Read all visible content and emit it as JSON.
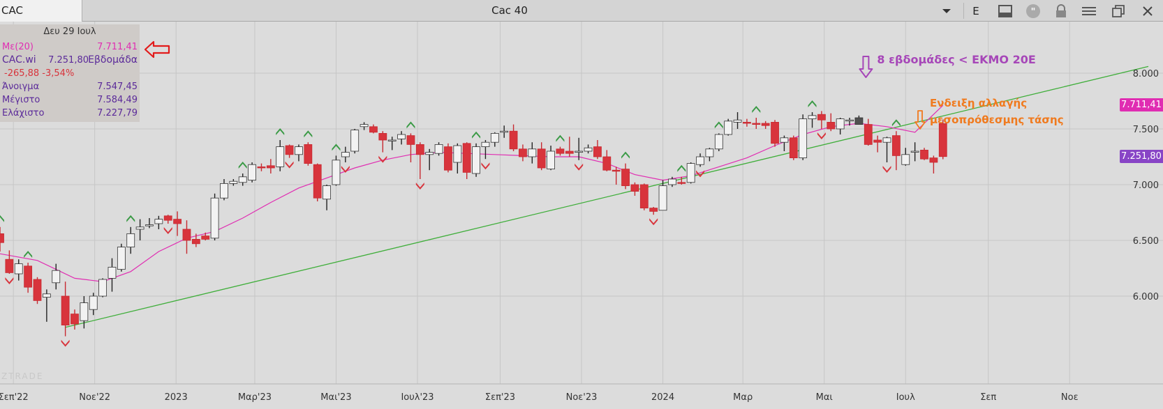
{
  "window": {
    "symbol": "CAC",
    "title": "Cac 40",
    "exchange_label": "E"
  },
  "infobox": {
    "date": "Δευ 29 Ιουλ",
    "ma_label": "Με(20)",
    "ma_value": "7.711,41",
    "series_label": "CAC.wi",
    "series_value": "7.251,80",
    "period": "Εβδομάδα",
    "change": "-265,88 -3,54%",
    "open_label": "Άνοιγμα",
    "open_value": "7.547,45",
    "high_label": "Μέγιστο",
    "high_value": "7.584,49",
    "low_label": "Ελάχιστο",
    "low_value": "7.227,79"
  },
  "watermark": "ZTRADE",
  "colors": {
    "up_fill": "#f2f2f2",
    "down_fill": "#d8343c",
    "ma_line": "#e02db2",
    "trendline": "#3fae3a",
    "arrow_up": "#3a9a45",
    "arrow_down": "#d8343c",
    "ma_badge": "#e02db2",
    "close_badge": "#8845c6",
    "annotation_purple": "#a646b8",
    "annotation_orange": "#f07a1e"
  },
  "chart_data": {
    "type": "candlestick",
    "title": "Cac 40",
    "period": "weekly",
    "ylim": [
      5600,
      8400
    ],
    "y_ticks": [
      "6.000",
      "6.500",
      "7.000",
      "7.500",
      "8.000"
    ],
    "y_tick_values": [
      6000,
      6500,
      7000,
      7500,
      8000
    ],
    "x_ticks": [
      "Σεπ'22",
      "Νοε'22",
      "2023",
      "Μαρ'23",
      "Μαι'23",
      "Ιουλ'23",
      "Σεπ'23",
      "Νοε'23",
      "2024",
      "Μαρ",
      "Μαι",
      "Ιουλ",
      "Σεπ",
      "Νοε"
    ],
    "x_tick_dates": [
      "2022-09-01",
      "2022-11-01",
      "2023-01-01",
      "2023-03-01",
      "2023-05-01",
      "2023-07-01",
      "2023-09-01",
      "2023-11-01",
      "2024-01-01",
      "2024-03-01",
      "2024-05-01",
      "2024-07-01",
      "2024-09-01",
      "2024-11-01"
    ],
    "x_range": [
      "2022-08-22",
      "2024-12-30"
    ],
    "candles": [
      {
        "date": "2022-08-22",
        "o": 6560,
        "h": 6620,
        "l": 6400,
        "c": 6480
      },
      {
        "date": "2022-08-29",
        "o": 6330,
        "h": 6410,
        "l": 6200,
        "c": 6210
      },
      {
        "date": "2022-09-05",
        "o": 6200,
        "h": 6330,
        "l": 6140,
        "c": 6290
      },
      {
        "date": "2022-09-12",
        "o": 6270,
        "h": 6300,
        "l": 6030,
        "c": 6080
      },
      {
        "date": "2022-09-19",
        "o": 6150,
        "h": 6170,
        "l": 5930,
        "c": 5960
      },
      {
        "date": "2022-09-26",
        "o": 5990,
        "h": 6060,
        "l": 5770,
        "c": 6020
      },
      {
        "date": "2022-10-03",
        "o": 6120,
        "h": 6290,
        "l": 6060,
        "c": 6230
      },
      {
        "date": "2022-10-10",
        "o": 6000,
        "h": 6130,
        "l": 5640,
        "c": 5740
      },
      {
        "date": "2022-10-17",
        "o": 5840,
        "h": 5880,
        "l": 5700,
        "c": 5750
      },
      {
        "date": "2022-10-24",
        "o": 5780,
        "h": 6000,
        "l": 5710,
        "c": 5940
      },
      {
        "date": "2022-10-31",
        "o": 5880,
        "h": 6030,
        "l": 5830,
        "c": 6000
      },
      {
        "date": "2022-11-07",
        "o": 6000,
        "h": 6160,
        "l": 5990,
        "c": 6150
      },
      {
        "date": "2022-11-14",
        "o": 6160,
        "h": 6340,
        "l": 6040,
        "c": 6260
      },
      {
        "date": "2022-11-21",
        "o": 6240,
        "h": 6470,
        "l": 6220,
        "c": 6440
      },
      {
        "date": "2022-11-28",
        "o": 6440,
        "h": 6620,
        "l": 6380,
        "c": 6560
      },
      {
        "date": "2022-12-05",
        "o": 6600,
        "h": 6690,
        "l": 6500,
        "c": 6620
      },
      {
        "date": "2022-12-12",
        "o": 6630,
        "h": 6700,
        "l": 6610,
        "c": 6640
      },
      {
        "date": "2022-12-19",
        "o": 6650,
        "h": 6720,
        "l": 6600,
        "c": 6690
      },
      {
        "date": "2022-12-26",
        "o": 6720,
        "h": 6730,
        "l": 6650,
        "c": 6680
      },
      {
        "date": "2023-01-02",
        "o": 6690,
        "h": 6760,
        "l": 6540,
        "c": 6650
      },
      {
        "date": "2023-01-09",
        "o": 6600,
        "h": 6680,
        "l": 6380,
        "c": 6500
      },
      {
        "date": "2023-01-16",
        "o": 6510,
        "h": 6560,
        "l": 6440,
        "c": 6470
      },
      {
        "date": "2023-01-23",
        "o": 6540,
        "h": 6570,
        "l": 6500,
        "c": 6510
      },
      {
        "date": "2023-01-30",
        "o": 6520,
        "h": 6920,
        "l": 6500,
        "c": 6880
      },
      {
        "date": "2023-02-06",
        "o": 6880,
        "h": 7050,
        "l": 6860,
        "c": 7010
      },
      {
        "date": "2023-02-13",
        "o": 7010,
        "h": 7050,
        "l": 6990,
        "c": 7030
      },
      {
        "date": "2023-02-20",
        "o": 7020,
        "h": 7100,
        "l": 6990,
        "c": 7070
      },
      {
        "date": "2023-02-27",
        "o": 7040,
        "h": 7200,
        "l": 7020,
        "c": 7180
      },
      {
        "date": "2023-03-06",
        "o": 7160,
        "h": 7190,
        "l": 7120,
        "c": 7150
      },
      {
        "date": "2023-03-13",
        "o": 7170,
        "h": 7230,
        "l": 7100,
        "c": 7150
      },
      {
        "date": "2023-03-20",
        "o": 7160,
        "h": 7400,
        "l": 7120,
        "c": 7340
      },
      {
        "date": "2023-03-27",
        "o": 7350,
        "h": 7360,
        "l": 7240,
        "c": 7270
      },
      {
        "date": "2023-04-03",
        "o": 7270,
        "h": 7360,
        "l": 7210,
        "c": 7340
      },
      {
        "date": "2023-04-10",
        "o": 7360,
        "h": 7380,
        "l": 7170,
        "c": 7190
      },
      {
        "date": "2023-04-17",
        "o": 7180,
        "h": 7190,
        "l": 6850,
        "c": 6880
      },
      {
        "date": "2023-04-24",
        "o": 6870,
        "h": 7000,
        "l": 6770,
        "c": 6990
      },
      {
        "date": "2023-05-01",
        "o": 7000,
        "h": 7260,
        "l": 6990,
        "c": 7220
      },
      {
        "date": "2023-05-08",
        "o": 7250,
        "h": 7340,
        "l": 7200,
        "c": 7290
      },
      {
        "date": "2023-05-15",
        "o": 7300,
        "h": 7500,
        "l": 7280,
        "c": 7490
      },
      {
        "date": "2023-05-22",
        "o": 7520,
        "h": 7560,
        "l": 7490,
        "c": 7540
      },
      {
        "date": "2023-05-29",
        "o": 7520,
        "h": 7540,
        "l": 7460,
        "c": 7470
      },
      {
        "date": "2023-06-05",
        "o": 7460,
        "h": 7480,
        "l": 7290,
        "c": 7400
      },
      {
        "date": "2023-06-12",
        "o": 7400,
        "h": 7430,
        "l": 7310,
        "c": 7400
      },
      {
        "date": "2023-06-19",
        "o": 7410,
        "h": 7480,
        "l": 7360,
        "c": 7450
      },
      {
        "date": "2023-06-26",
        "o": 7440,
        "h": 7460,
        "l": 7200,
        "c": 7360
      },
      {
        "date": "2023-07-03",
        "o": 7360,
        "h": 7380,
        "l": 7050,
        "c": 7270
      },
      {
        "date": "2023-07-10",
        "o": 7270,
        "h": 7320,
        "l": 7130,
        "c": 7290
      },
      {
        "date": "2023-07-17",
        "o": 7280,
        "h": 7380,
        "l": 7260,
        "c": 7360
      },
      {
        "date": "2023-07-24",
        "o": 7340,
        "h": 7370,
        "l": 7110,
        "c": 7130
      },
      {
        "date": "2023-07-31",
        "o": 7200,
        "h": 7370,
        "l": 7100,
        "c": 7350
      },
      {
        "date": "2023-08-07",
        "o": 7370,
        "h": 7380,
        "l": 7050,
        "c": 7110
      },
      {
        "date": "2023-08-14",
        "o": 7100,
        "h": 7370,
        "l": 7070,
        "c": 7340
      },
      {
        "date": "2023-08-21",
        "o": 7340,
        "h": 7400,
        "l": 7230,
        "c": 7380
      },
      {
        "date": "2023-08-28",
        "o": 7380,
        "h": 7470,
        "l": 7340,
        "c": 7460
      },
      {
        "date": "2023-09-04",
        "o": 7470,
        "h": 7530,
        "l": 7420,
        "c": 7480
      },
      {
        "date": "2023-09-11",
        "o": 7480,
        "h": 7540,
        "l": 7300,
        "c": 7320
      },
      {
        "date": "2023-09-18",
        "o": 7320,
        "h": 7360,
        "l": 7210,
        "c": 7250
      },
      {
        "date": "2023-09-25",
        "o": 7250,
        "h": 7380,
        "l": 7190,
        "c": 7320
      },
      {
        "date": "2023-10-02",
        "o": 7320,
        "h": 7380,
        "l": 7130,
        "c": 7150
      },
      {
        "date": "2023-10-09",
        "o": 7140,
        "h": 7350,
        "l": 7130,
        "c": 7300
      },
      {
        "date": "2023-10-16",
        "o": 7320,
        "h": 7340,
        "l": 7260,
        "c": 7280
      },
      {
        "date": "2023-10-23",
        "o": 7300,
        "h": 7430,
        "l": 7250,
        "c": 7280
      },
      {
        "date": "2023-10-30",
        "o": 7290,
        "h": 7420,
        "l": 7220,
        "c": 7300
      },
      {
        "date": "2023-11-06",
        "o": 7300,
        "h": 7360,
        "l": 7280,
        "c": 7330
      },
      {
        "date": "2023-11-13",
        "o": 7340,
        "h": 7400,
        "l": 7230,
        "c": 7250
      },
      {
        "date": "2023-11-20",
        "o": 7250,
        "h": 7310,
        "l": 7120,
        "c": 7130
      },
      {
        "date": "2023-11-27",
        "o": 7130,
        "h": 7160,
        "l": 7000,
        "c": 7120
      },
      {
        "date": "2023-12-04",
        "o": 7140,
        "h": 7190,
        "l": 6960,
        "c": 6990
      },
      {
        "date": "2023-12-11",
        "o": 7000,
        "h": 7020,
        "l": 6900,
        "c": 6940
      },
      {
        "date": "2023-12-18",
        "o": 7000,
        "h": 7010,
        "l": 6770,
        "c": 6790
      },
      {
        "date": "2023-12-25",
        "o": 6790,
        "h": 6800,
        "l": 6730,
        "c": 6760
      },
      {
        "date": "2024-01-01",
        "o": 6770,
        "h": 7040,
        "l": 6780,
        "c": 6990
      },
      {
        "date": "2024-01-08",
        "o": 7000,
        "h": 7070,
        "l": 6980,
        "c": 7050
      },
      {
        "date": "2024-01-15",
        "o": 7020,
        "h": 7070,
        "l": 7000,
        "c": 7010
      },
      {
        "date": "2024-01-22",
        "o": 7020,
        "h": 7200,
        "l": 7010,
        "c": 7190
      },
      {
        "date": "2024-01-29",
        "o": 7180,
        "h": 7280,
        "l": 7160,
        "c": 7250
      },
      {
        "date": "2024-02-05",
        "o": 7250,
        "h": 7330,
        "l": 7210,
        "c": 7320
      },
      {
        "date": "2024-02-12",
        "o": 7320,
        "h": 7460,
        "l": 7300,
        "c": 7450
      },
      {
        "date": "2024-02-19",
        "o": 7450,
        "h": 7590,
        "l": 7440,
        "c": 7570
      },
      {
        "date": "2024-02-26",
        "o": 7560,
        "h": 7650,
        "l": 7500,
        "c": 7580
      },
      {
        "date": "2024-03-04",
        "o": 7560,
        "h": 7590,
        "l": 7520,
        "c": 7550
      },
      {
        "date": "2024-03-11",
        "o": 7550,
        "h": 7600,
        "l": 7500,
        "c": 7540
      },
      {
        "date": "2024-03-18",
        "o": 7550,
        "h": 7570,
        "l": 7500,
        "c": 7530
      },
      {
        "date": "2024-03-25",
        "o": 7560,
        "h": 7580,
        "l": 7340,
        "c": 7370
      },
      {
        "date": "2024-04-01",
        "o": 7380,
        "h": 7440,
        "l": 7300,
        "c": 7420
      },
      {
        "date": "2024-04-08",
        "o": 7420,
        "h": 7440,
        "l": 7220,
        "c": 7240
      },
      {
        "date": "2024-04-15",
        "o": 7240,
        "h": 7630,
        "l": 7220,
        "c": 7590
      },
      {
        "date": "2024-04-22",
        "o": 7590,
        "h": 7650,
        "l": 7510,
        "c": 7620
      },
      {
        "date": "2024-04-29",
        "o": 7630,
        "h": 7660,
        "l": 7500,
        "c": 7580
      },
      {
        "date": "2024-05-06",
        "o": 7560,
        "h": 7640,
        "l": 7480,
        "c": 7500
      },
      {
        "date": "2024-05-13",
        "o": 7500,
        "h": 7600,
        "l": 7450,
        "c": 7590
      },
      {
        "date": "2024-05-20",
        "o": 7580,
        "h": 7600,
        "l": 7530,
        "c": 7580
      },
      {
        "date": "2024-05-27",
        "o": 7540,
        "h": 7620,
        "l": 7550,
        "c": 7600
      },
      {
        "date": "2024-06-03",
        "o": 7540,
        "h": 7590,
        "l": 7350,
        "c": 7360
      },
      {
        "date": "2024-06-10",
        "o": 7400,
        "h": 7440,
        "l": 7290,
        "c": 7380
      },
      {
        "date": "2024-06-17",
        "o": 7380,
        "h": 7430,
        "l": 7200,
        "c": 7420
      },
      {
        "date": "2024-06-24",
        "o": 7440,
        "h": 7480,
        "l": 7130,
        "c": 7260
      },
      {
        "date": "2024-07-01",
        "o": 7180,
        "h": 7330,
        "l": 7170,
        "c": 7270
      },
      {
        "date": "2024-07-08",
        "o": 7300,
        "h": 7380,
        "l": 7210,
        "c": 7300
      },
      {
        "date": "2024-07-15",
        "o": 7310,
        "h": 7330,
        "l": 7220,
        "c": 7230
      },
      {
        "date": "2024-07-22",
        "o": 7240,
        "h": 7260,
        "l": 7100,
        "c": 7200
      },
      {
        "date": "2024-07-29",
        "o": 7547.45,
        "h": 7584.49,
        "l": 7227.79,
        "c": 7251.8
      }
    ],
    "moving_average": {
      "name": "Με(20)",
      "points": [
        {
          "date": "2022-08-22",
          "v": 6380
        },
        {
          "date": "2022-09-19",
          "v": 6320
        },
        {
          "date": "2022-10-17",
          "v": 6160
        },
        {
          "date": "2022-11-07",
          "v": 6130
        },
        {
          "date": "2022-11-28",
          "v": 6220
        },
        {
          "date": "2022-12-19",
          "v": 6400
        },
        {
          "date": "2023-01-09",
          "v": 6520
        },
        {
          "date": "2023-01-30",
          "v": 6580
        },
        {
          "date": "2023-02-20",
          "v": 6700
        },
        {
          "date": "2023-03-13",
          "v": 6840
        },
        {
          "date": "2023-04-03",
          "v": 6970
        },
        {
          "date": "2023-04-24",
          "v": 7060
        },
        {
          "date": "2023-05-15",
          "v": 7150
        },
        {
          "date": "2023-06-05",
          "v": 7220
        },
        {
          "date": "2023-06-26",
          "v": 7270
        },
        {
          "date": "2023-07-17",
          "v": 7290
        },
        {
          "date": "2023-08-07",
          "v": 7280
        },
        {
          "date": "2023-08-28",
          "v": 7270
        },
        {
          "date": "2023-09-18",
          "v": 7260
        },
        {
          "date": "2023-10-09",
          "v": 7250
        },
        {
          "date": "2023-10-30",
          "v": 7250
        },
        {
          "date": "2023-11-20",
          "v": 7190
        },
        {
          "date": "2023-12-11",
          "v": 7090
        },
        {
          "date": "2024-01-01",
          "v": 7040
        },
        {
          "date": "2024-01-22",
          "v": 7080
        },
        {
          "date": "2024-02-12",
          "v": 7160
        },
        {
          "date": "2024-03-04",
          "v": 7240
        },
        {
          "date": "2024-03-25",
          "v": 7350
        },
        {
          "date": "2024-04-15",
          "v": 7450
        },
        {
          "date": "2024-05-06",
          "v": 7520
        },
        {
          "date": "2024-05-27",
          "v": 7550
        },
        {
          "date": "2024-06-17",
          "v": 7520
        },
        {
          "date": "2024-07-08",
          "v": 7470
        },
        {
          "date": "2024-07-29",
          "v": 7711.41
        }
      ]
    },
    "trendline": {
      "start": {
        "date": "2022-10-10",
        "v": 5720
      },
      "end": {
        "date": "2024-12-30",
        "v": 8060
      }
    },
    "up_arrows": [
      "2022-08-22",
      "2022-09-12",
      "2022-11-28",
      "2023-02-20",
      "2023-03-20",
      "2023-04-10",
      "2023-05-01",
      "2023-06-26",
      "2023-08-14",
      "2023-10-16",
      "2023-12-04",
      "2024-01-15",
      "2024-02-12",
      "2024-03-11",
      "2024-04-22",
      "2024-06-24"
    ],
    "down_arrows": [
      "2022-08-29",
      "2022-10-10",
      "2022-12-26",
      "2023-03-27",
      "2023-05-08",
      "2023-06-05",
      "2023-07-03",
      "2023-08-21",
      "2023-10-30",
      "2023-12-25",
      "2024-01-29",
      "2024-04-29",
      "2024-06-17"
    ],
    "price_badges": [
      {
        "label": "7.711,41",
        "value": 7711.41,
        "color": "#e02db2"
      },
      {
        "label": "7.251,80",
        "value": 7251.8,
        "color": "#8845c6"
      }
    ],
    "annotations": [
      {
        "text": "8 εβδομάδες < ΕΚΜΟ 20Ε",
        "color": "#a646b8",
        "arrow_date": "2024-05-27",
        "arrow_value": 7900
      },
      {
        "text_line1": "Ενδειξη αλλαγής",
        "text_line2": "μεσοπρόθεσμης τάσης",
        "color": "#f07a1e",
        "arrow_date": "2024-07-15",
        "arrow_value": 7450
      }
    ]
  }
}
